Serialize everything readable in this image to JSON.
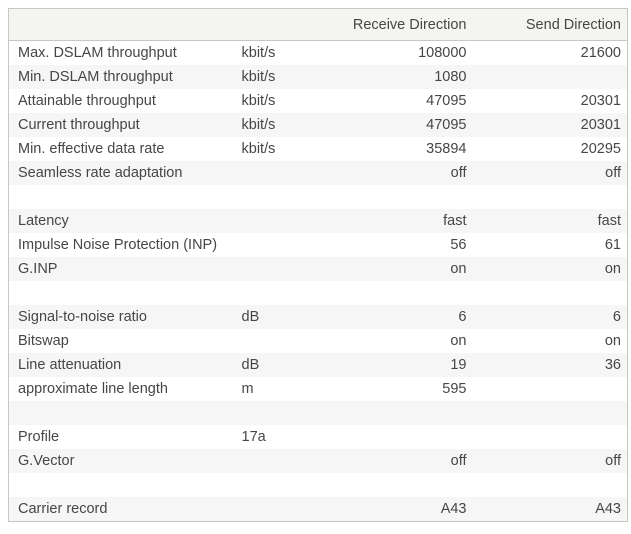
{
  "table": {
    "columns": {
      "parameter": "",
      "unit": "",
      "receive": "Receive Direction",
      "send": "Send Direction"
    },
    "rows": [
      {
        "label": "Max. DSLAM throughput",
        "unit": "kbit/s",
        "receive": "108000",
        "send": "21600"
      },
      {
        "label": "Min. DSLAM throughput",
        "unit": "kbit/s",
        "receive": "1080",
        "send": ""
      },
      {
        "label": "Attainable throughput",
        "unit": "kbit/s",
        "receive": "47095",
        "send": "20301"
      },
      {
        "label": "Current throughput",
        "unit": "kbit/s",
        "receive": "47095",
        "send": "20301"
      },
      {
        "label": "Min. effective data rate",
        "unit": "kbit/s",
        "receive": "35894",
        "send": "20295"
      },
      {
        "label": "Seamless rate adaptation",
        "unit": "",
        "receive": "off",
        "send": "off"
      },
      {
        "label": "",
        "unit": "",
        "receive": "",
        "send": ""
      },
      {
        "label": "Latency",
        "unit": "",
        "receive": "fast",
        "send": "fast"
      },
      {
        "label": "Impulse Noise Protection (INP)",
        "unit": "",
        "receive": "56",
        "send": "61"
      },
      {
        "label": "G.INP",
        "unit": "",
        "receive": "on",
        "send": "on"
      },
      {
        "label": "",
        "unit": "",
        "receive": "",
        "send": ""
      },
      {
        "label": "Signal-to-noise ratio",
        "unit": "dB",
        "receive": "6",
        "send": "6"
      },
      {
        "label": "Bitswap",
        "unit": "",
        "receive": "on",
        "send": "on"
      },
      {
        "label": "Line attenuation",
        "unit": "dB",
        "receive": "19",
        "send": "36"
      },
      {
        "label": "approximate line length",
        "unit": "m",
        "receive": "595",
        "send": ""
      },
      {
        "label": "",
        "unit": "",
        "receive": "",
        "send": ""
      },
      {
        "label": "Profile",
        "unit": "17a",
        "receive": "",
        "send": ""
      },
      {
        "label": "G.Vector",
        "unit": "",
        "receive": "off",
        "send": "off"
      },
      {
        "label": "",
        "unit": "",
        "receive": "",
        "send": ""
      },
      {
        "label": "Carrier record",
        "unit": "",
        "receive": "A43",
        "send": "A43"
      }
    ]
  },
  "colors": {
    "page_bg": "#ffffff",
    "header_bg": "#f4f4f0",
    "stripe_bg": "#f6f6f6",
    "border": "#c8c8c3",
    "text": "#474645"
  }
}
